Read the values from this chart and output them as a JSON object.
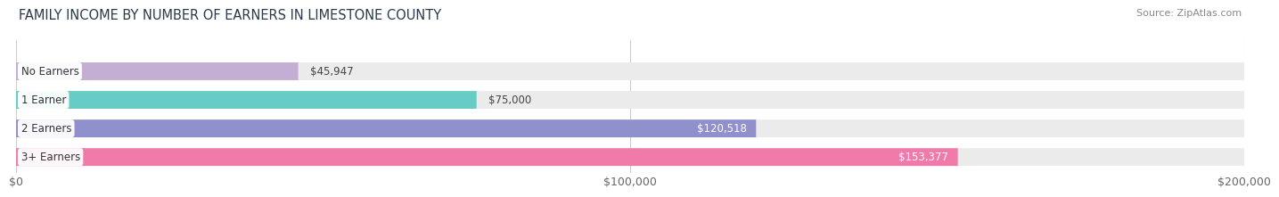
{
  "title": "FAMILY INCOME BY NUMBER OF EARNERS IN LIMESTONE COUNTY",
  "source": "Source: ZipAtlas.com",
  "categories": [
    "No Earners",
    "1 Earner",
    "2 Earners",
    "3+ Earners"
  ],
  "values": [
    45947,
    75000,
    120518,
    153377
  ],
  "labels": [
    "$45,947",
    "$75,000",
    "$120,518",
    "$153,377"
  ],
  "bar_colors": [
    "#c4afd4",
    "#68ccc6",
    "#9090cc",
    "#f07aaa"
  ],
  "bar_bg_color": "#ebebeb",
  "xlim": [
    0,
    200000
  ],
  "xticks": [
    0,
    100000,
    200000
  ],
  "xticklabels": [
    "$0",
    "$100,000",
    "$200,000"
  ],
  "title_fontsize": 10.5,
  "tick_fontsize": 9,
  "bar_height": 0.62,
  "bg_color": "#ffffff",
  "label_inside_threshold": 90000,
  "grid_color": "#cccccc",
  "text_dark": "#444444",
  "text_light": "#ffffff"
}
